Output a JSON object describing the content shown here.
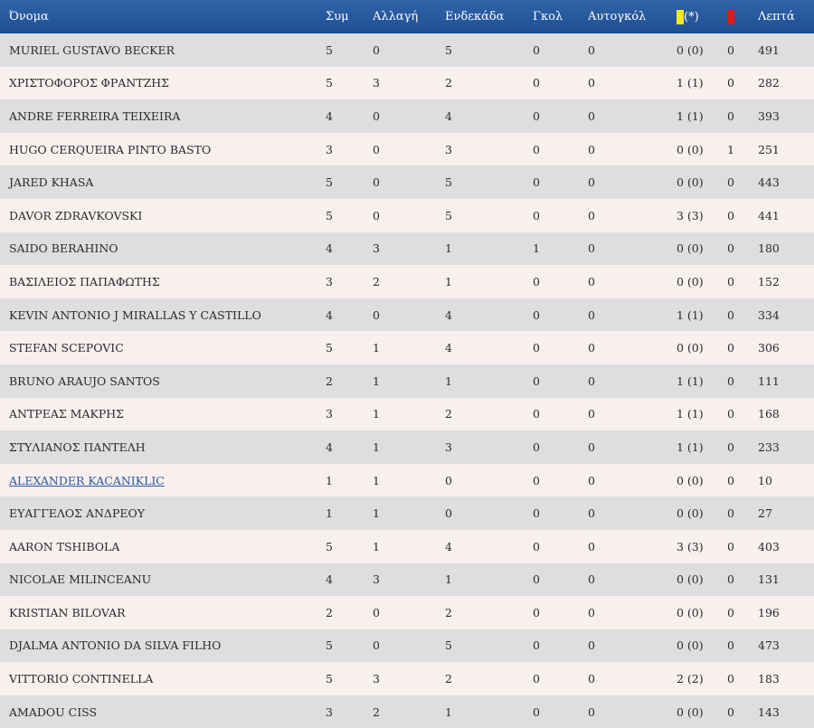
{
  "header": {
    "name": "Όνομα",
    "apps": "Συμ",
    "sub": "Αλλαγή",
    "lineup": "Ενδεκάδα",
    "goals": "Γκολ",
    "own_goals": "Αυτογκόλ",
    "yellow_suffix": "(*)",
    "minutes": "Λεπτά"
  },
  "colors": {
    "header_bg": "#2a5aa0",
    "yellow_card": "#f5ea14",
    "red_card": "#e01818",
    "row_odd": "#dedede",
    "row_even": "#f8efef",
    "link": "#2a5aa0"
  },
  "players": [
    {
      "name": "MURIEL GUSTAVO BECKER",
      "apps": "5",
      "sub": "0",
      "lineup": "5",
      "goals": "0",
      "own_goals": "0",
      "yellow": "0 (0)",
      "red": "0",
      "minutes": "491",
      "link": false
    },
    {
      "name": "ΧΡΙΣΤΟΦΟΡΟΣ ΦΡΑΝΤΖΗΣ",
      "apps": "5",
      "sub": "3",
      "lineup": "2",
      "goals": "0",
      "own_goals": "0",
      "yellow": "1 (1)",
      "red": "0",
      "minutes": "282",
      "link": false
    },
    {
      "name": "ANDRE FERREIRA TEIXEIRA",
      "apps": "4",
      "sub": "0",
      "lineup": "4",
      "goals": "0",
      "own_goals": "0",
      "yellow": "1 (1)",
      "red": "0",
      "minutes": "393",
      "link": false
    },
    {
      "name": "HUGO CERQUEIRA PINTO BASTO",
      "apps": "3",
      "sub": "0",
      "lineup": "3",
      "goals": "0",
      "own_goals": "0",
      "yellow": "0 (0)",
      "red": "1",
      "minutes": "251",
      "link": false
    },
    {
      "name": "JARED KHASA",
      "apps": "5",
      "sub": "0",
      "lineup": "5",
      "goals": "0",
      "own_goals": "0",
      "yellow": "0 (0)",
      "red": "0",
      "minutes": "443",
      "link": false
    },
    {
      "name": "DAVOR ZDRAVKOVSKI",
      "apps": "5",
      "sub": "0",
      "lineup": "5",
      "goals": "0",
      "own_goals": "0",
      "yellow": "3 (3)",
      "red": "0",
      "minutes": "441",
      "link": false
    },
    {
      "name": "SAIDO BERAHINO",
      "apps": "4",
      "sub": "3",
      "lineup": "1",
      "goals": "1",
      "own_goals": "0",
      "yellow": "0 (0)",
      "red": "0",
      "minutes": "180",
      "link": false
    },
    {
      "name": "ΒΑΣΙΛΕΙΟΣ ΠΑΠΑΦΩΤΗΣ",
      "apps": "3",
      "sub": "2",
      "lineup": "1",
      "goals": "0",
      "own_goals": "0",
      "yellow": "0 (0)",
      "red": "0",
      "minutes": "152",
      "link": false
    },
    {
      "name": "KEVIN ANTONIO J MIRALLAS Y CASTILLO",
      "apps": "4",
      "sub": "0",
      "lineup": "4",
      "goals": "0",
      "own_goals": "0",
      "yellow": "1 (1)",
      "red": "0",
      "minutes": "334",
      "link": false
    },
    {
      "name": "STEFAN SCEPOVIC",
      "apps": "5",
      "sub": "1",
      "lineup": "4",
      "goals": "0",
      "own_goals": "0",
      "yellow": "0 (0)",
      "red": "0",
      "minutes": "306",
      "link": false
    },
    {
      "name": "BRUNO ARAUJO SANTOS",
      "apps": "2",
      "sub": "1",
      "lineup": "1",
      "goals": "0",
      "own_goals": "0",
      "yellow": "1 (1)",
      "red": "0",
      "minutes": "111",
      "link": false
    },
    {
      "name": "ΑΝΤΡΕΑΣ ΜΑΚΡΗΣ",
      "apps": "3",
      "sub": "1",
      "lineup": "2",
      "goals": "0",
      "own_goals": "0",
      "yellow": "1 (1)",
      "red": "0",
      "minutes": "168",
      "link": false
    },
    {
      "name": "ΣΤΥΛΙΑΝΟΣ ΠΑΝΤΕΛΗ",
      "apps": "4",
      "sub": "1",
      "lineup": "3",
      "goals": "0",
      "own_goals": "0",
      "yellow": "1 (1)",
      "red": "0",
      "minutes": "233",
      "link": false
    },
    {
      "name": "ALEXANDER KACANIKLIC",
      "apps": "1",
      "sub": "1",
      "lineup": "0",
      "goals": "0",
      "own_goals": "0",
      "yellow": "0 (0)",
      "red": "0",
      "minutes": "10",
      "link": true
    },
    {
      "name": "ΕΥΑΓΓΕΛΟΣ ΑΝΔΡΕΟΥ",
      "apps": "1",
      "sub": "1",
      "lineup": "0",
      "goals": "0",
      "own_goals": "0",
      "yellow": "0 (0)",
      "red": "0",
      "minutes": "27",
      "link": false
    },
    {
      "name": "AARON TSHIBOLA",
      "apps": "5",
      "sub": "1",
      "lineup": "4",
      "goals": "0",
      "own_goals": "0",
      "yellow": "3 (3)",
      "red": "0",
      "minutes": "403",
      "link": false
    },
    {
      "name": "NICOLAE MILINCEANU",
      "apps": "4",
      "sub": "3",
      "lineup": "1",
      "goals": "0",
      "own_goals": "0",
      "yellow": "0 (0)",
      "red": "0",
      "minutes": "131",
      "link": false
    },
    {
      "name": "KRISTIAN BILOVAR",
      "apps": "2",
      "sub": "0",
      "lineup": "2",
      "goals": "0",
      "own_goals": "0",
      "yellow": "0 (0)",
      "red": "0",
      "minutes": "196",
      "link": false
    },
    {
      "name": "DJALMA ANTONIO DA SILVA FILHO",
      "apps": "5",
      "sub": "0",
      "lineup": "5",
      "goals": "0",
      "own_goals": "0",
      "yellow": "0 (0)",
      "red": "0",
      "minutes": "473",
      "link": false
    },
    {
      "name": "VITTORIO CONTINELLA",
      "apps": "5",
      "sub": "3",
      "lineup": "2",
      "goals": "0",
      "own_goals": "0",
      "yellow": "2 (2)",
      "red": "0",
      "minutes": "183",
      "link": false
    },
    {
      "name": "AMADOU CISS",
      "apps": "3",
      "sub": "2",
      "lineup": "1",
      "goals": "0",
      "own_goals": "0",
      "yellow": "0 (0)",
      "red": "0",
      "minutes": "143",
      "link": false
    }
  ]
}
